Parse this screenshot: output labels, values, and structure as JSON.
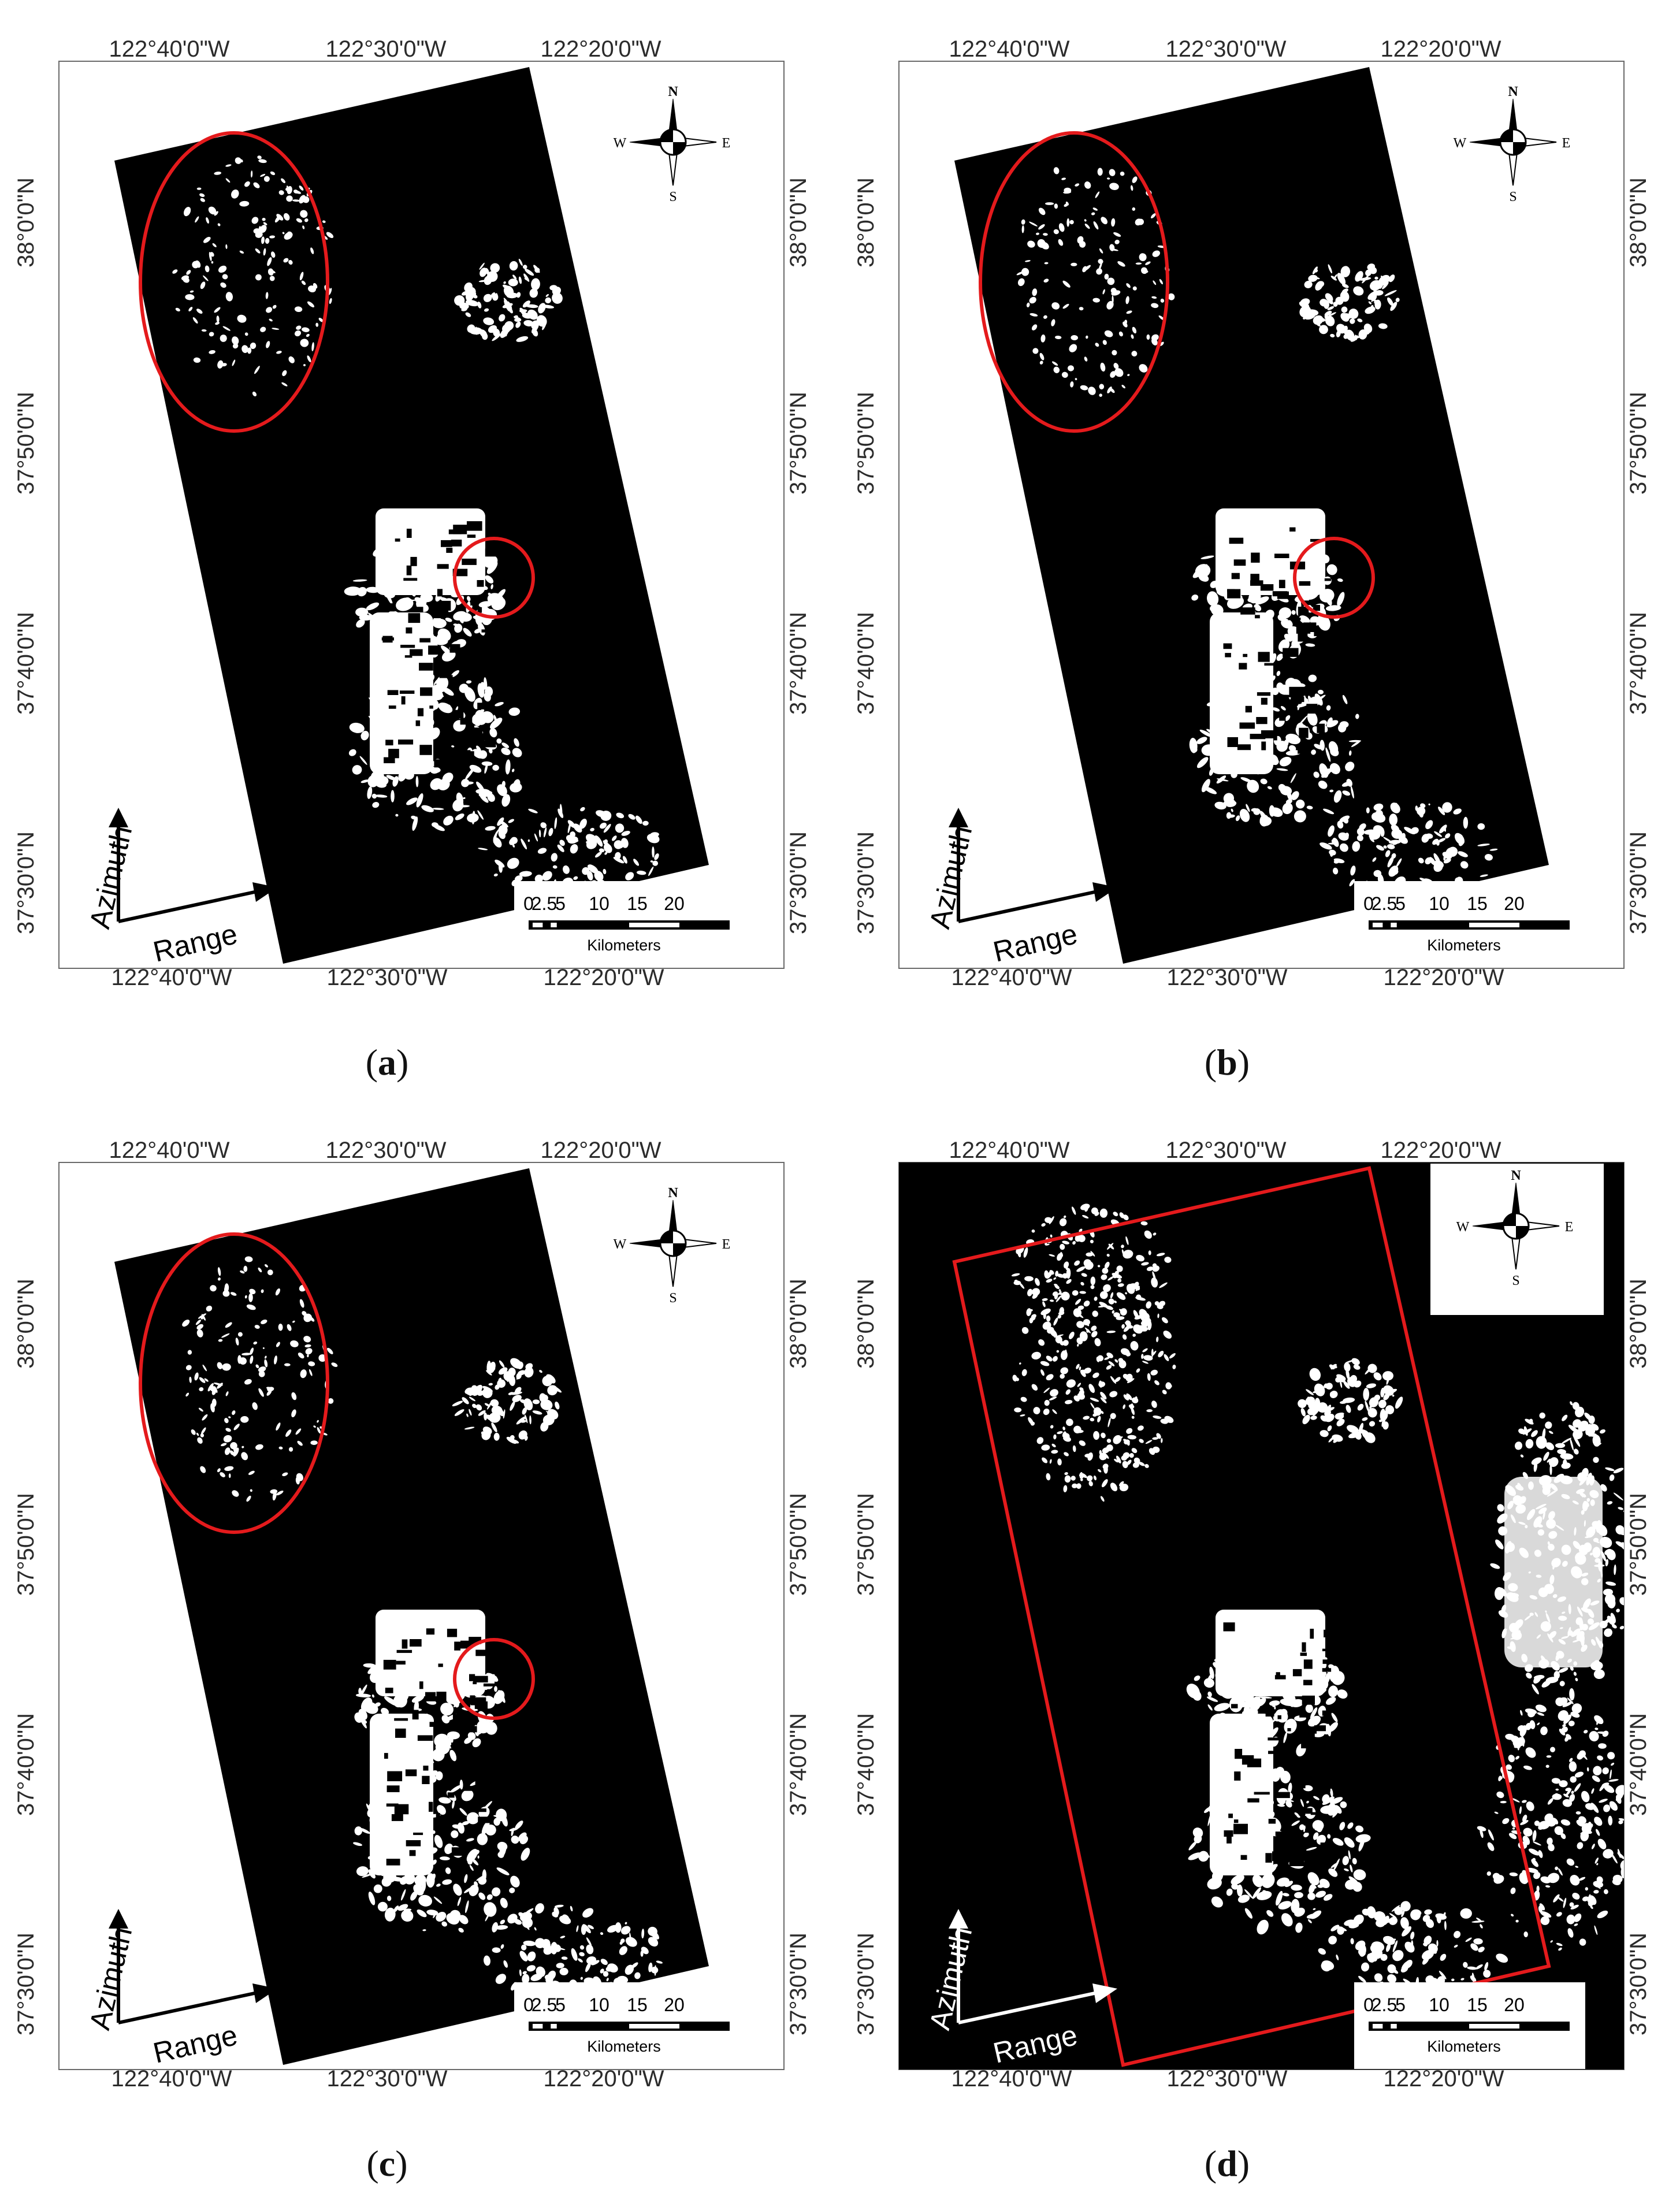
{
  "panels": [
    {
      "id": "a",
      "caption": "a",
      "top_ticks": [
        "122°40'0\"W",
        "122°30'0\"W",
        "122°20'0\"W"
      ],
      "bottom_ticks": [
        "122°40'0\"W",
        "122°30'0\"W",
        "122°20'0\"W"
      ],
      "left_ticks": [
        "38°0'0\"N",
        "37°50'0\"N",
        "37°40'0\"N",
        "37°30'0\"N"
      ],
      "right_ticks": [
        "38°0'0\"N",
        "37°50'0\"N",
        "37°40'0\"N",
        "37°30'0\"N"
      ],
      "azimuth_label": "Azimuth",
      "range_label": "Range",
      "compass": {
        "n": "N",
        "s": "S",
        "e": "E",
        "w": "W"
      },
      "scalebar": {
        "labels": [
          "0",
          "2.5",
          "5",
          "10",
          "15",
          "20"
        ],
        "unit": "Kilometers"
      },
      "highlight_color": "#e41a1c"
    },
    {
      "id": "b",
      "caption": "b",
      "top_ticks": [
        "122°40'0\"W",
        "122°30'0\"W",
        "122°20'0\"W"
      ],
      "bottom_ticks": [
        "122°40'0\"W",
        "122°30'0\"W",
        "122°20'0\"W"
      ],
      "left_ticks": [
        "38°0'0\"N",
        "37°50'0\"N",
        "37°40'0\"N",
        "37°30'0\"N"
      ],
      "right_ticks": [
        "38°0'0\"N",
        "37°50'0\"N",
        "37°40'0\"N",
        "37°30'0\"N"
      ],
      "azimuth_label": "Azimuth",
      "range_label": "Range",
      "compass": {
        "n": "N",
        "s": "S",
        "e": "E",
        "w": "W"
      },
      "scalebar": {
        "labels": [
          "0",
          "2.5",
          "5",
          "10",
          "15",
          "20"
        ],
        "unit": "Kilometers"
      },
      "highlight_color": "#e41a1c"
    },
    {
      "id": "c",
      "caption": "c",
      "top_ticks": [
        "122°40'0\"W",
        "122°30'0\"W",
        "122°20'0\"W"
      ],
      "bottom_ticks": [
        "122°40'0\"W",
        "122°30'0\"W",
        "122°20'0\"W"
      ],
      "left_ticks": [
        "38°0'0\"N",
        "37°50'0\"N",
        "37°40'0\"N",
        "37°30'0\"N"
      ],
      "right_ticks": [
        "38°0'0\"N",
        "37°50'0\"N",
        "37°40'0\"N",
        "37°30'0\"N"
      ],
      "azimuth_label": "Azimuth",
      "range_label": "Range",
      "compass": {
        "n": "N",
        "s": "S",
        "e": "E",
        "w": "W"
      },
      "scalebar": {
        "labels": [
          "0",
          "2.5",
          "5",
          "10",
          "15",
          "20"
        ],
        "unit": "Kilometers"
      },
      "highlight_color": "#e41a1c"
    },
    {
      "id": "d",
      "caption": "d",
      "top_ticks": [
        "122°40'0\"W",
        "122°30'0\"W",
        "122°20'0\"W"
      ],
      "bottom_ticks": [
        "122°40'0\"W",
        "122°30'0\"W",
        "122°20'0\"W"
      ],
      "left_ticks": [
        "38°0'0\"N",
        "37°50'0\"N",
        "37°40'0\"N",
        "37°30'0\"N"
      ],
      "right_ticks": [
        "38°0'0\"N",
        "37°50'0\"N",
        "37°40'0\"N",
        "37°30'0\"N"
      ],
      "azimuth_label": "Azimuth",
      "range_label": "Range",
      "compass": {
        "n": "N",
        "s": "S",
        "e": "E",
        "w": "W"
      },
      "scalebar": {
        "labels": [
          "0",
          "2.5",
          "5",
          "10",
          "15",
          "20"
        ],
        "unit": "Kilometers"
      },
      "highlight_color": "#e41a1c"
    }
  ]
}
